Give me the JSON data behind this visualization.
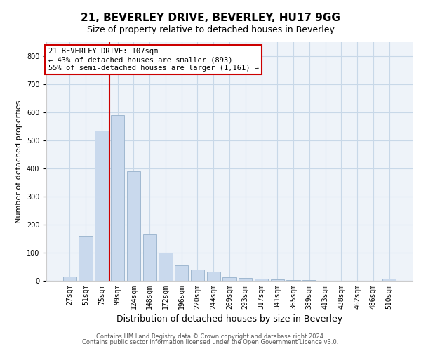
{
  "title_line1": "21, BEVERLEY DRIVE, BEVERLEY, HU17 9GG",
  "title_line2": "Size of property relative to detached houses in Beverley",
  "xlabel": "Distribution of detached houses by size in Beverley",
  "ylabel": "Number of detached properties",
  "footer_line1": "Contains HM Land Registry data © Crown copyright and database right 2024.",
  "footer_line2": "Contains public sector information licensed under the Open Government Licence v3.0.",
  "annotation_line1": "21 BEVERLEY DRIVE: 107sqm",
  "annotation_line2": "← 43% of detached houses are smaller (893)",
  "annotation_line3": "55% of semi-detached houses are larger (1,161) →",
  "bar_labels": [
    "27sqm",
    "51sqm",
    "75sqm",
    "99sqm",
    "124sqm",
    "148sqm",
    "172sqm",
    "196sqm",
    "220sqm",
    "244sqm",
    "269sqm",
    "293sqm",
    "317sqm",
    "341sqm",
    "365sqm",
    "389sqm",
    "413sqm",
    "438sqm",
    "462sqm",
    "486sqm",
    "510sqm"
  ],
  "bar_values": [
    15,
    160,
    535,
    590,
    390,
    165,
    100,
    55,
    40,
    32,
    12,
    10,
    8,
    5,
    3,
    2,
    1,
    0,
    0,
    0,
    7
  ],
  "bar_color": "#c9d9ed",
  "bar_edge_color": "#a0b8d0",
  "grid_color": "#c8d8e8",
  "red_color": "#cc0000",
  "ylim": [
    0,
    850
  ],
  "yticks": [
    0,
    100,
    200,
    300,
    400,
    500,
    600,
    700,
    800
  ],
  "bg_color": "#ffffff",
  "plot_bg_color": "#eef3f9",
  "title1_fontsize": 11,
  "title2_fontsize": 9,
  "ylabel_fontsize": 8,
  "xlabel_fontsize": 9,
  "footer_fontsize": 6,
  "tick_fontsize": 7,
  "ann_fontsize": 7.5
}
